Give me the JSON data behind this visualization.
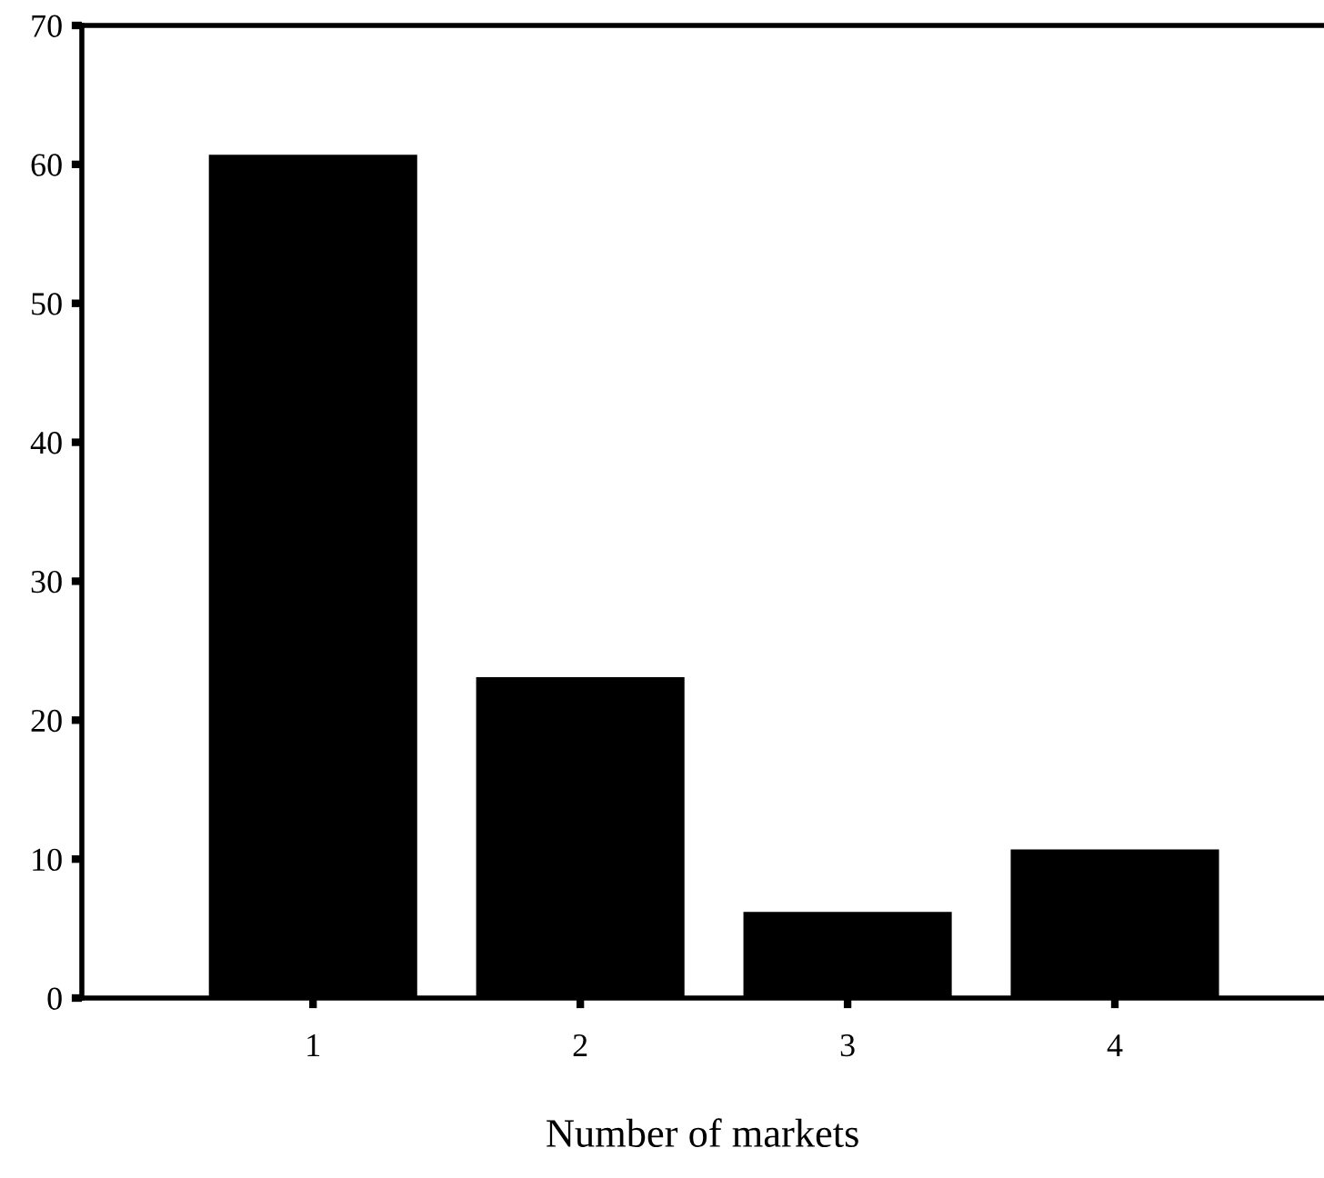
{
  "chart_data": {
    "type": "bar",
    "xlabel": "Number of markets",
    "categories": [
      "1",
      "2",
      "3",
      "4"
    ],
    "values": [
      60.6,
      23.0,
      6.1,
      10.6
    ],
    "color": "#000000",
    "ylim": [
      0,
      70
    ],
    "yticks": [
      0,
      10,
      20,
      30,
      40,
      50,
      60,
      70
    ],
    "grid": false,
    "legend": false
  }
}
